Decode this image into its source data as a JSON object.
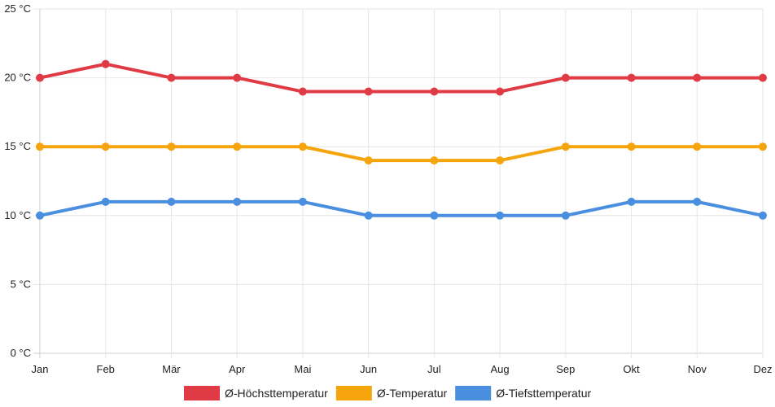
{
  "chart_data": {
    "type": "line",
    "categories": [
      "Jan",
      "Feb",
      "Mär",
      "Apr",
      "Mai",
      "Jun",
      "Jul",
      "Aug",
      "Sep",
      "Okt",
      "Nov",
      "Dez"
    ],
    "y_ticks": [
      "0 °C",
      "5 °C",
      "10 °C",
      "15 °C",
      "20 °C",
      "25 °C"
    ],
    "ylim": [
      0,
      25
    ],
    "y_step": 5,
    "grid": true,
    "legend_position": "bottom",
    "series": [
      {
        "name": "Ø-Höchsttemperatur",
        "color": "#e03a45",
        "values": [
          20,
          21,
          20,
          20,
          19,
          19,
          19,
          19,
          20,
          20,
          20,
          20
        ]
      },
      {
        "name": "Ø-Temperatur",
        "color": "#f5a40c",
        "values": [
          15,
          15,
          15,
          15,
          15,
          14,
          14,
          14,
          15,
          15,
          15,
          15
        ]
      },
      {
        "name": "Ø-Tiefsttemperatur",
        "color": "#4a8fdf",
        "values": [
          10,
          11,
          11,
          11,
          11,
          10,
          10,
          10,
          10,
          11,
          11,
          10
        ]
      }
    ]
  }
}
